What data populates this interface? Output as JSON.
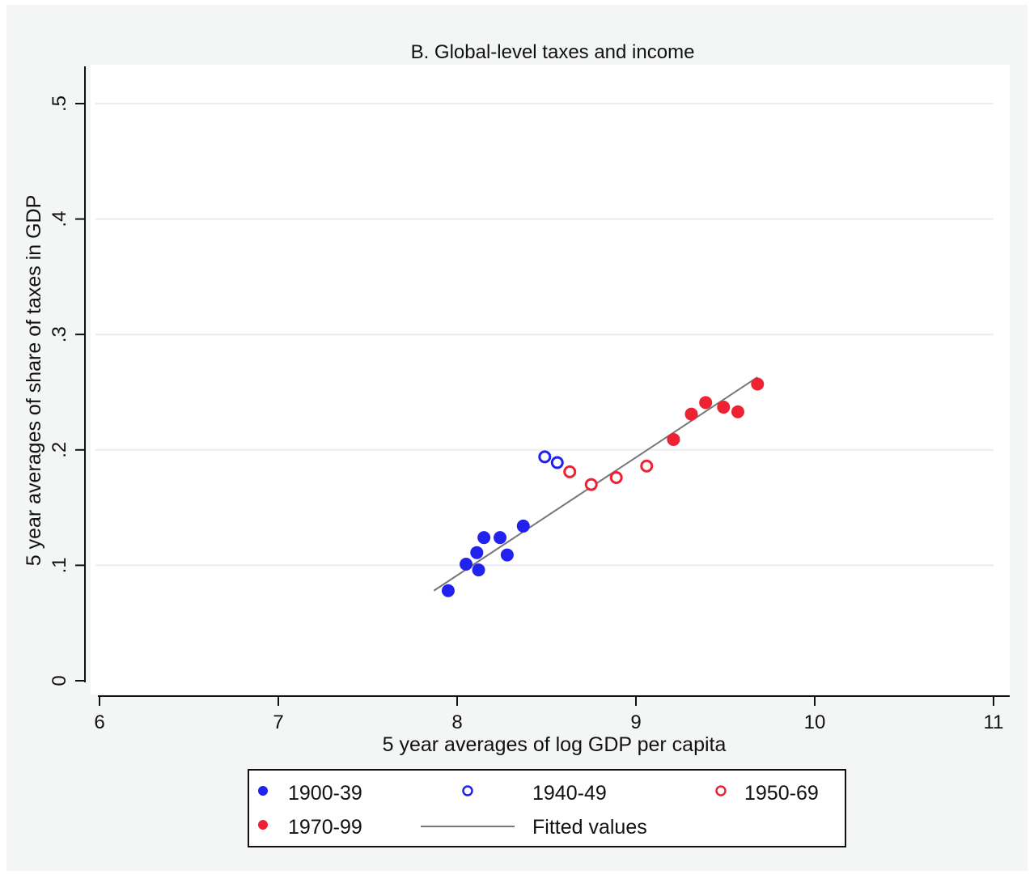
{
  "chart_data": {
    "type": "scatter",
    "title": "B. Global-level taxes and income",
    "xlabel": "5 year averages of log GDP per capita",
    "ylabel": "5 year averages of share of taxes in GDP",
    "xlim": [
      6,
      11
    ],
    "ylim": [
      0,
      0.5
    ],
    "x_ticks": [
      6,
      7,
      8,
      9,
      10,
      11
    ],
    "x_tick_labels": [
      "6",
      "7",
      "8",
      "9",
      "10",
      "11"
    ],
    "y_ticks": [
      0,
      0.1,
      0.2,
      0.3,
      0.4,
      0.5
    ],
    "y_tick_labels": [
      "0",
      ".1",
      ".2",
      ".3",
      ".4",
      ".5"
    ],
    "grid": true,
    "legend_position": "bottom",
    "series": [
      {
        "name": "1900-39",
        "marker": "filled-circle",
        "color": "#2222ee",
        "x": [
          7.95,
          8.05,
          8.11,
          8.12,
          8.15,
          8.24,
          8.28,
          8.37
        ],
        "y": [
          0.078,
          0.101,
          0.111,
          0.096,
          0.124,
          0.124,
          0.109,
          0.134
        ]
      },
      {
        "name": "1940-49",
        "marker": "hollow-circle",
        "color": "#2222ee",
        "x": [
          8.49,
          8.56
        ],
        "y": [
          0.194,
          0.189
        ]
      },
      {
        "name": "1950-69",
        "marker": "hollow-circle",
        "color": "#ee2233",
        "x": [
          8.63,
          8.75,
          8.89,
          9.06
        ],
        "y": [
          0.181,
          0.17,
          0.176,
          0.186
        ]
      },
      {
        "name": "1970-99",
        "marker": "filled-circle",
        "color": "#ee2233",
        "x": [
          9.21,
          9.31,
          9.39,
          9.49,
          9.57,
          9.68
        ],
        "y": [
          0.209,
          0.231,
          0.241,
          0.237,
          0.233,
          0.257
        ]
      },
      {
        "name": "Fitted values",
        "marker": "line",
        "color": "#777777",
        "x": [
          7.87,
          9.68
        ],
        "y": [
          0.078,
          0.263
        ]
      }
    ],
    "legend_entries": [
      "1900-39",
      "1940-49",
      "1950-69",
      "1970-99",
      "Fitted values"
    ]
  }
}
